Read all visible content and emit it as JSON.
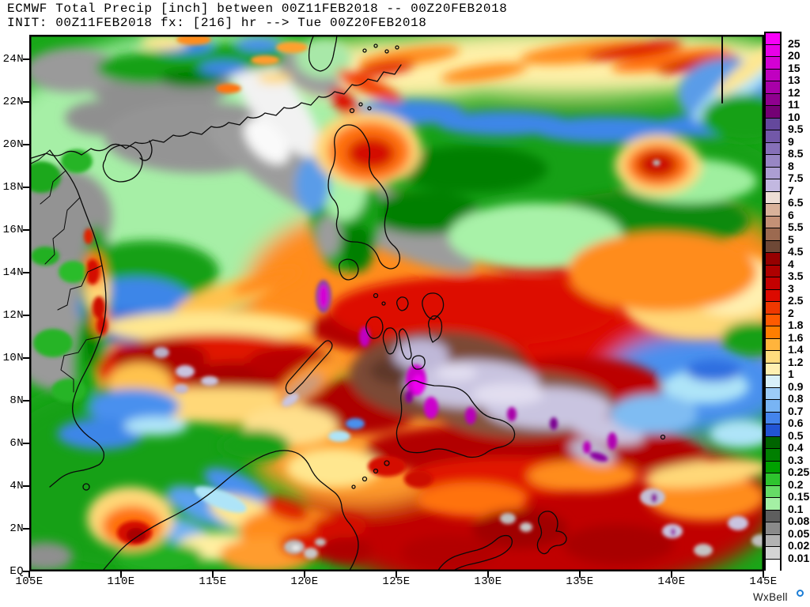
{
  "title": {
    "line1": "ECMWF Total Precip [inch] between 00Z11FEB2018 -- 00Z20FEB2018",
    "line2": "INIT: 00Z11FEB2018 fx: [216] hr --> Tue 00Z20FEB2018"
  },
  "axes": {
    "lat_labels": [
      "24N",
      "22N",
      "20N",
      "18N",
      "16N",
      "14N",
      "12N",
      "10N",
      "8N",
      "6N",
      "4N",
      "2N",
      "EQ"
    ],
    "lon_labels": [
      "105E",
      "110E",
      "115E",
      "120E",
      "125E",
      "130E",
      "135E",
      "140E",
      "145E"
    ]
  },
  "colorbar": {
    "unit": "inch",
    "boundaries": [
      "25",
      "20",
      "15",
      "13",
      "12",
      "11",
      "10",
      "9.5",
      "9",
      "8.5",
      "8",
      "7.5",
      "7",
      "6.5",
      "6",
      "5.5",
      "5",
      "4.5",
      "4",
      "3.5",
      "3",
      "2.5",
      "2",
      "1.8",
      "1.6",
      "1.4",
      "1.2",
      "1",
      "0.9",
      "0.8",
      "0.7",
      "0.6",
      "0.5",
      "0.4",
      "0.3",
      "0.25",
      "0.2",
      "0.15",
      "0.1",
      "0.08",
      "0.05",
      "0.02",
      "0.01"
    ],
    "colors": [
      "#F800F8",
      "#E800E8",
      "#D400D4",
      "#C000C0",
      "#A800A8",
      "#8F008F",
      "#740074",
      "#64489C",
      "#7258A8",
      "#8670B8",
      "#9886C4",
      "#AC9ED2",
      "#C2B8E0",
      "#EDDED5",
      "#D9B29A",
      "#C49176",
      "#9C6A50",
      "#6E4836",
      "#960000",
      "#AE0000",
      "#C40000",
      "#DC0A00",
      "#F03800",
      "#FF5A00",
      "#FF7E00",
      "#FFB43C",
      "#FFDC7E",
      "#FFF0B2",
      "#D8F0FA",
      "#9CCCF8",
      "#78B4F4",
      "#4484EC",
      "#2254D4",
      "#006400",
      "#007F00",
      "#00A000",
      "#2EC42E",
      "#66DC66",
      "#A4F0A4",
      "#5E5E5E",
      "#8A8A8A",
      "#B2B2B2",
      "#D4D4D4",
      "#FFFFFF"
    ]
  },
  "watermark": {
    "text": "WxBell"
  }
}
